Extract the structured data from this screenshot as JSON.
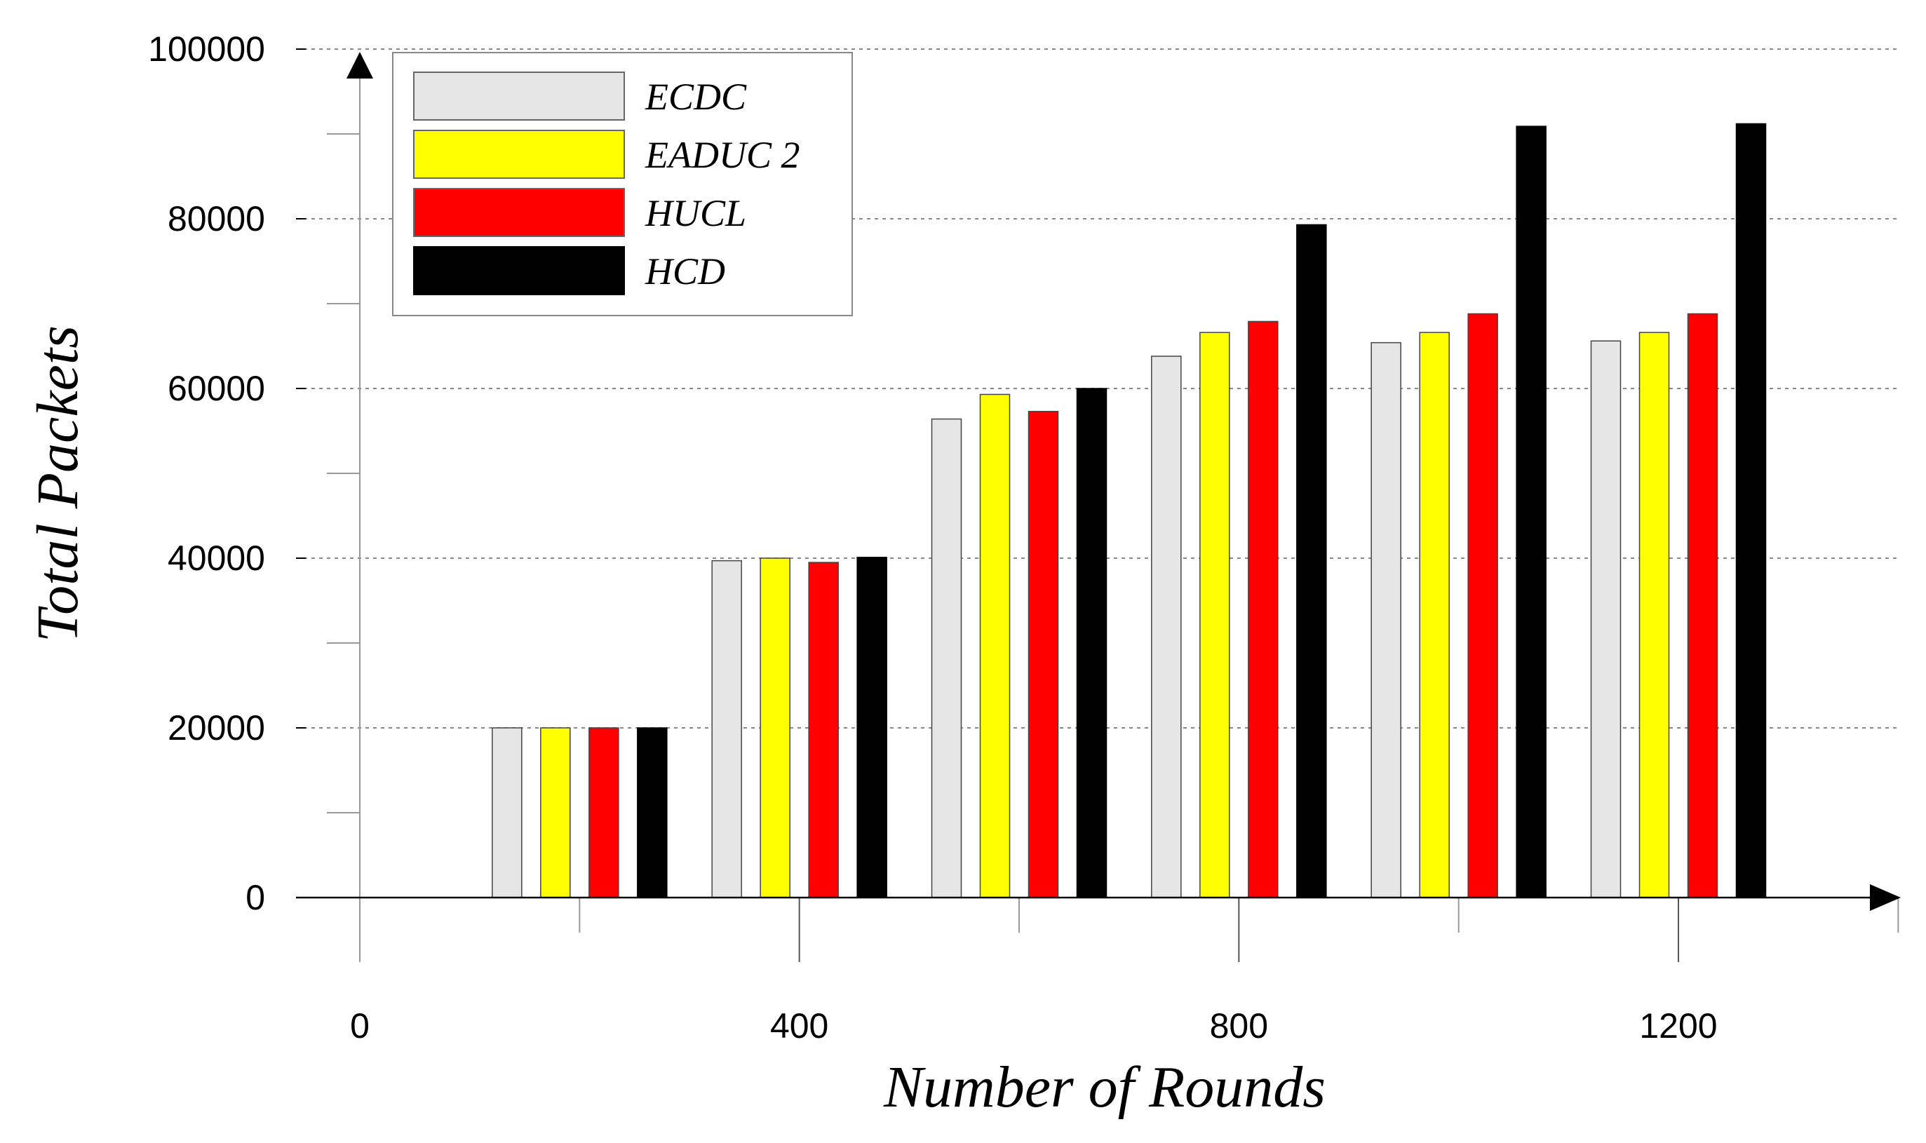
{
  "chart_data": {
    "type": "bar",
    "xlabel": "Number of Rounds",
    "ylabel": "Total Packets",
    "xlim": [
      -100,
      1400
    ],
    "ylim": [
      -7500,
      100000
    ],
    "x_ticks": [
      0,
      400,
      800,
      1200
    ],
    "y_ticks": [
      0,
      20000,
      40000,
      60000,
      80000,
      100000
    ],
    "grid": true,
    "legend_position": "top-left",
    "x": [
      200,
      400,
      600,
      800,
      1000,
      1200
    ],
    "series": [
      {
        "name": "ECDC",
        "color": "#e6e6e6",
        "values": [
          20000,
          39700,
          56400,
          63800,
          65400,
          65600
        ]
      },
      {
        "name": "EADUC 2",
        "color": "#ffff00",
        "values": [
          20000,
          40000,
          59300,
          66600,
          66600,
          66600
        ]
      },
      {
        "name": "HUCL",
        "color": "#ff0000",
        "values": [
          20000,
          39500,
          57300,
          67900,
          68800,
          68800
        ]
      },
      {
        "name": "HCD",
        "color": "#000000",
        "values": [
          20000,
          40100,
          60000,
          79300,
          90900,
          91200
        ]
      }
    ]
  }
}
